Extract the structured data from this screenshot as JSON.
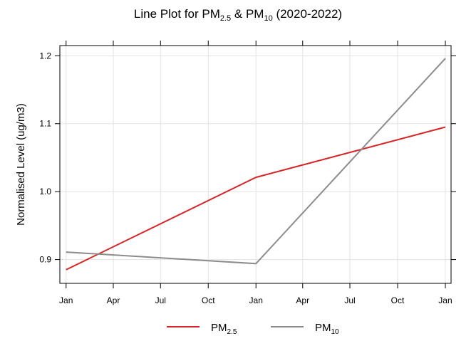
{
  "chart_data": {
    "type": "line",
    "title": {
      "prefix": "Line Plot for PM",
      "sub1": "2.5",
      "mid": " & PM",
      "sub2": "10",
      "suffix": " (2020-2022)"
    },
    "xlabel": "",
    "ylabel": "Normalised Level (ug/m3)",
    "x": [
      "2020-01-01",
      "2021-01-01",
      "2022-01-01"
    ],
    "x_ticks": [
      {
        "date": "2020-01-01",
        "label": "Jan"
      },
      {
        "date": "2020-04-01",
        "label": "Apr"
      },
      {
        "date": "2020-07-01",
        "label": "Jul"
      },
      {
        "date": "2020-10-01",
        "label": "Oct"
      },
      {
        "date": "2021-01-01",
        "label": "Jan"
      },
      {
        "date": "2021-04-01",
        "label": "Apr"
      },
      {
        "date": "2021-07-01",
        "label": "Jul"
      },
      {
        "date": "2021-10-01",
        "label": "Oct"
      },
      {
        "date": "2022-01-01",
        "label": "Jan"
      }
    ],
    "xlim": [
      "2019-12-20",
      "2022-01-12"
    ],
    "ylim": [
      0.865,
      1.215
    ],
    "y_ticks": [
      0.9,
      1.0,
      1.1,
      1.2
    ],
    "y_tick_labels": [
      "0.9",
      "1.0",
      "1.1",
      "1.2"
    ],
    "grid": true,
    "legend_position": "bottom",
    "series": [
      {
        "name": "PM",
        "name_sub": "2.5",
        "color": "#d62728",
        "values": [
          0.885,
          1.021,
          1.095
        ]
      },
      {
        "name": "PM",
        "name_sub": "10",
        "color": "#8c8c8c",
        "values": [
          0.911,
          0.894,
          1.196
        ]
      }
    ]
  }
}
